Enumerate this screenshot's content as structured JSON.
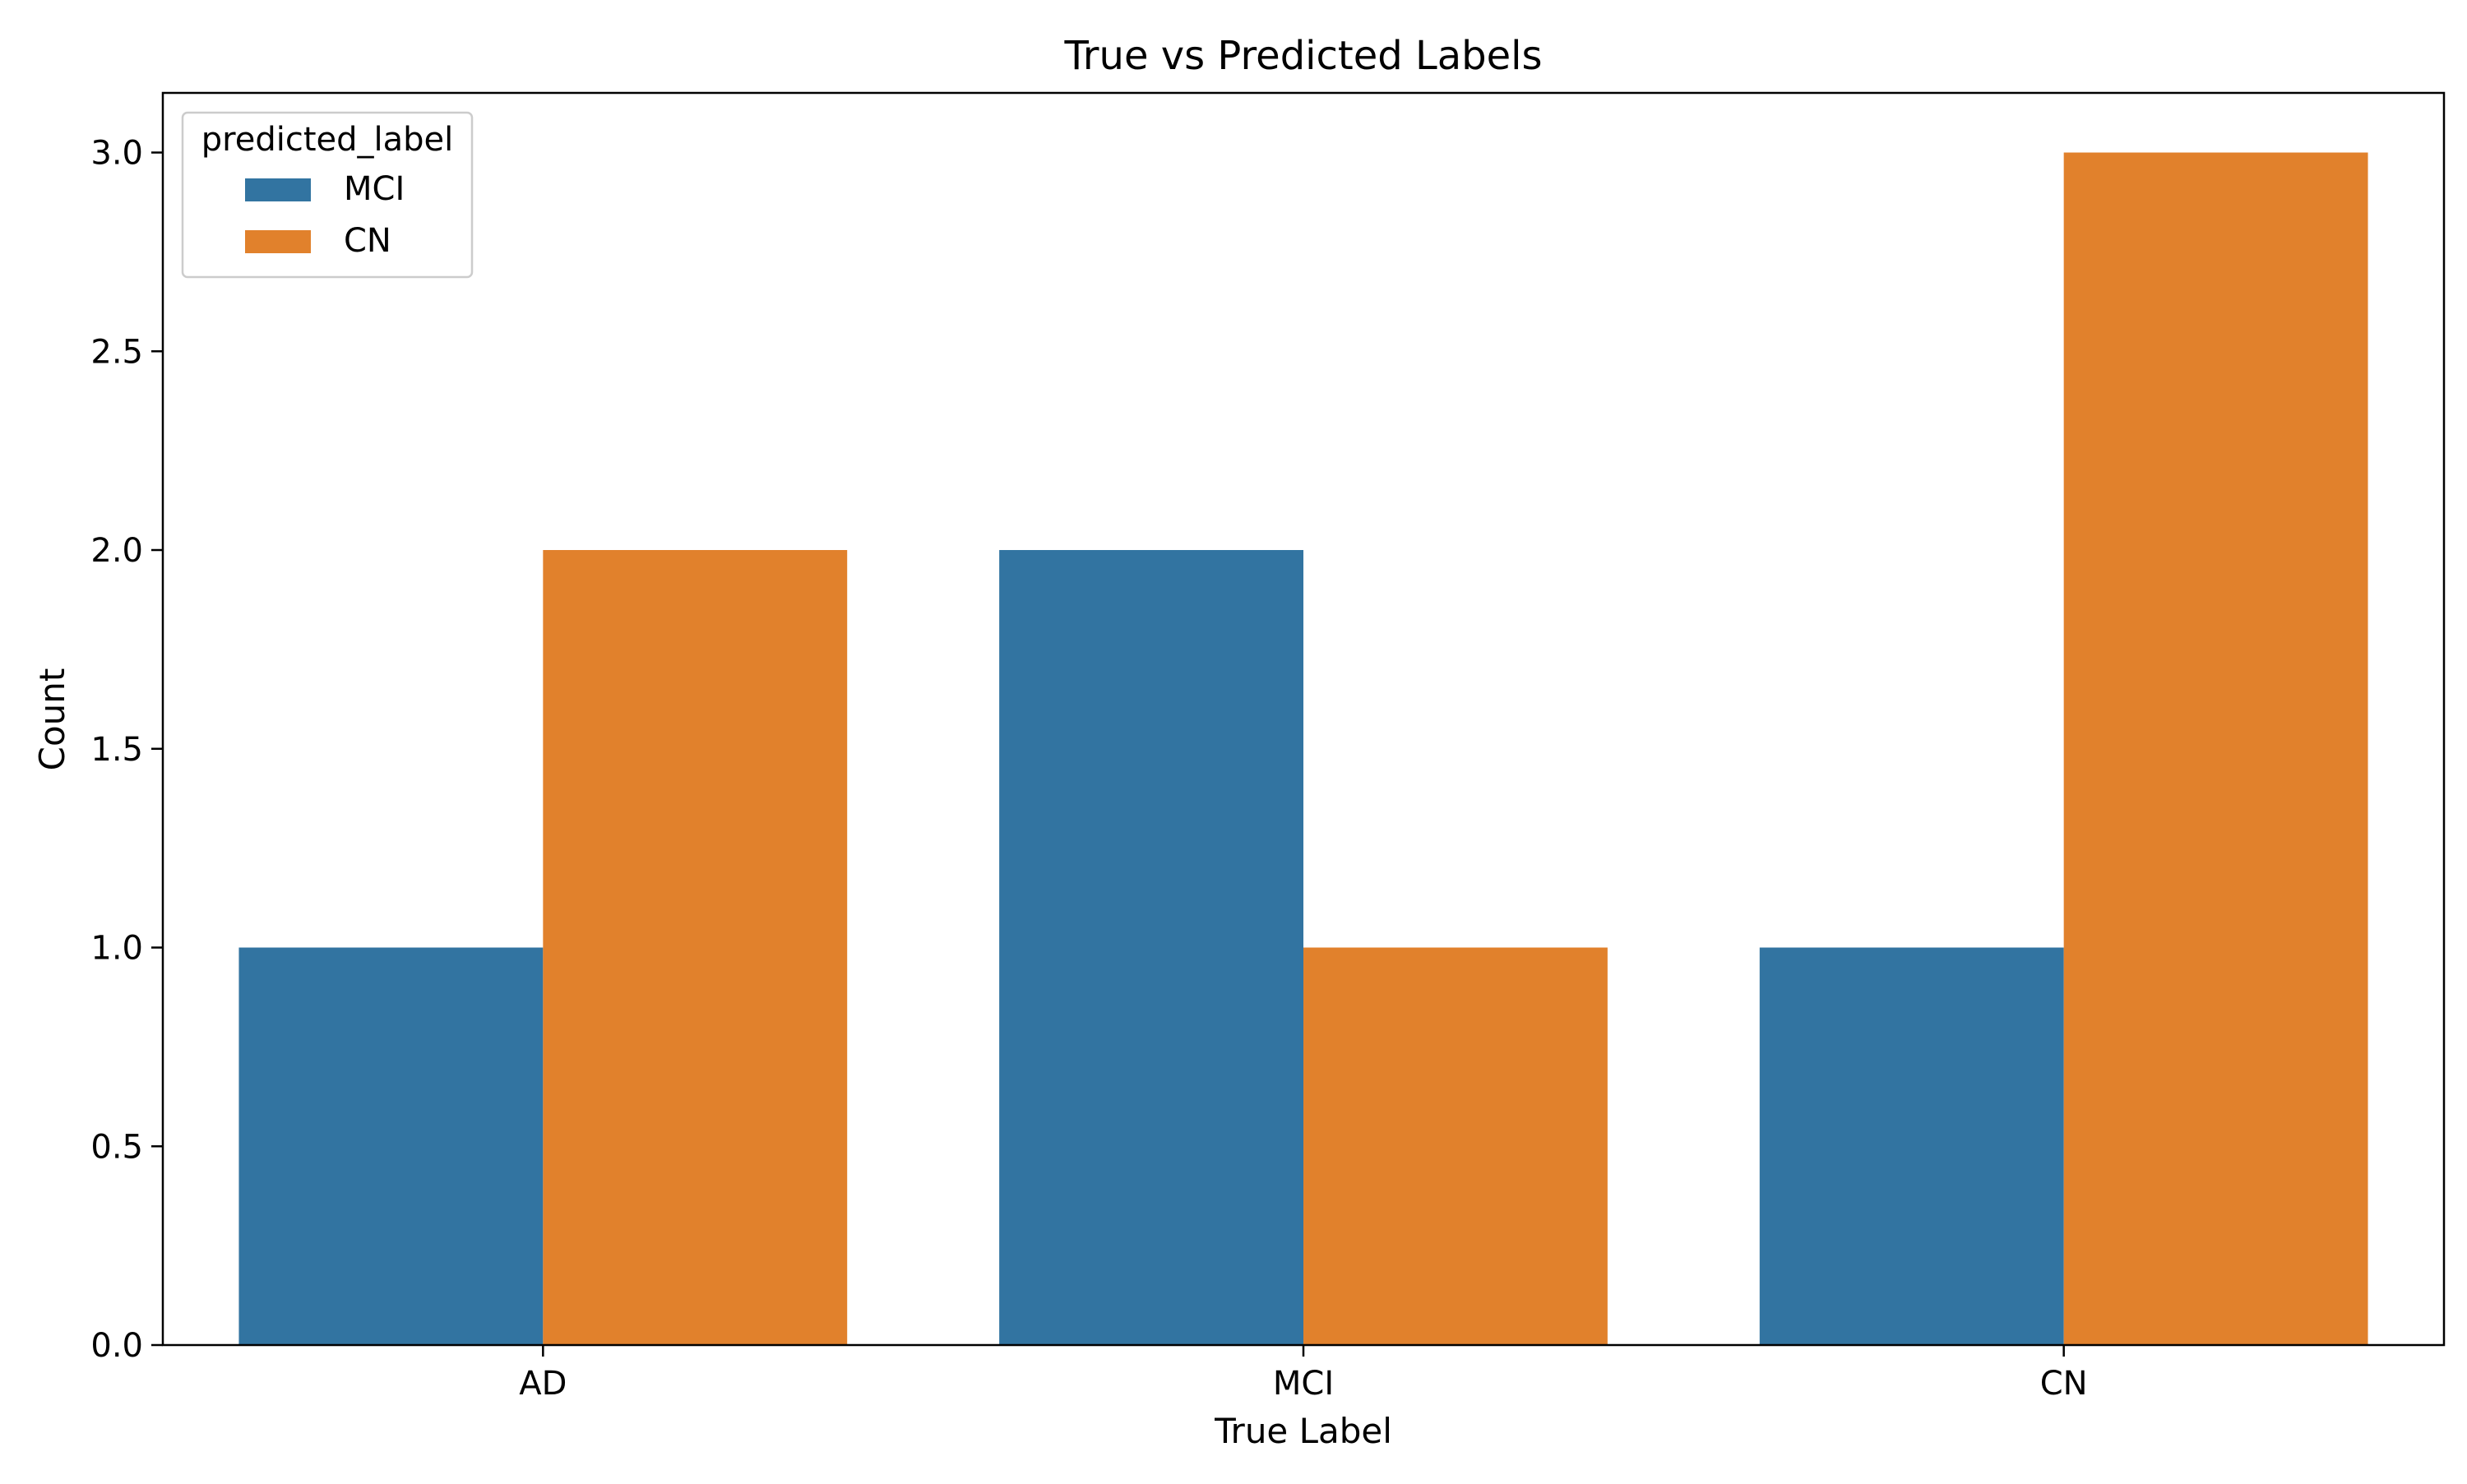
{
  "chart_data": {
    "type": "bar",
    "title": "True vs Predicted Labels",
    "xlabel": "True Label",
    "ylabel": "Count",
    "categories": [
      "AD",
      "MCI",
      "CN"
    ],
    "series": [
      {
        "name": "MCI",
        "values": [
          1,
          2,
          1
        ],
        "color": "#3274a1"
      },
      {
        "name": "CN",
        "values": [
          2,
          1,
          3
        ],
        "color": "#e1812c"
      }
    ],
    "ylim": [
      0,
      3.15
    ],
    "yticks": [
      "0.0",
      "0.5",
      "1.0",
      "1.5",
      "2.0",
      "2.5",
      "3.0"
    ],
    "legend": {
      "title": "predicted_label",
      "placement": "top-left"
    },
    "grid": false
  }
}
